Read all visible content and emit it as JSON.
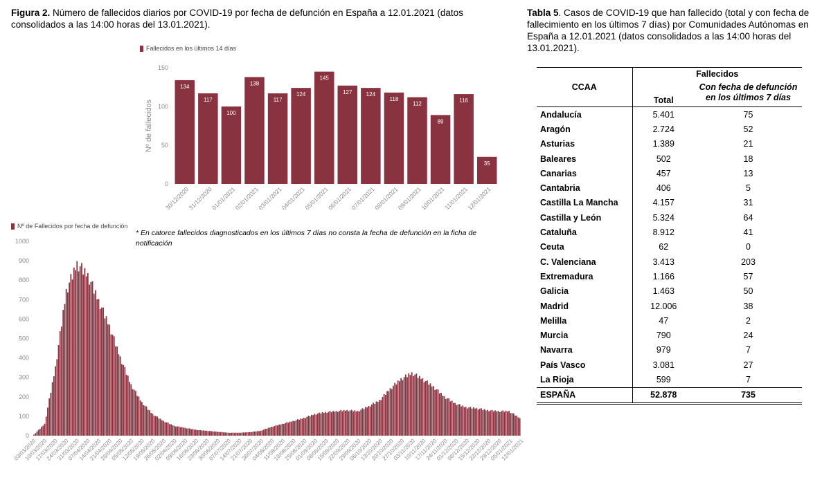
{
  "figure_caption": {
    "label": "Figura 2.",
    "text": " Número de fallecidos diarios por COVID-19 por fecha de defunción en España a 12.01.2021 (datos consolidados a las 14:00 horas del 13.01.2021)."
  },
  "table_caption": {
    "label": "Tabla 5",
    "text": ". Casos de COVID-19 que han fallecido (total y con fecha de fallecimiento en los últimos 7 días) por Comunidades Autónomas en España a 12.01.2021 (datos consolidados a las 14:00 horas del 13.01.2021)."
  },
  "note": "* En catorce fallecidos diagnosticados en los últimos 7 días no consta la fecha de defunción en la ficha de notificación",
  "colors": {
    "bar": "#8a3340",
    "axis_text": "#888888"
  },
  "chart_data": [
    {
      "type": "bar",
      "legend": "Fallecidos en los últimos 14 días",
      "ylabel": "Nº de fallecidos",
      "xlabel": "",
      "ylim": [
        0,
        150
      ],
      "yticks": [
        0,
        50,
        100,
        150
      ],
      "grid": false,
      "legend_position": "top-left",
      "categories": [
        "30/12/2020",
        "31/12/2020",
        "01/01/2021",
        "02/01/2021",
        "03/01/2021",
        "04/01/2021",
        "05/01/2021",
        "06/01/2021",
        "07/01/2021",
        "08/01/2021",
        "09/01/2021",
        "10/01/2021",
        "11/01/2021",
        "12/01/2021"
      ],
      "values": [
        134,
        117,
        100,
        138,
        117,
        124,
        145,
        127,
        124,
        118,
        112,
        89,
        116,
        35
      ]
    },
    {
      "type": "bar",
      "legend": "Nº de Fallecidos por fecha de defunción",
      "ylim": [
        0,
        1000
      ],
      "yticks": [
        0,
        100,
        200,
        300,
        400,
        500,
        600,
        700,
        800,
        900,
        1000
      ],
      "grid": false,
      "legend_position": "top-left",
      "x_start": "03/03/2020",
      "x_end": "12/01/2021",
      "tick_labels": [
        "03/03/2020",
        "10/03/2020",
        "17/03/2020",
        "24/03/2020",
        "31/03/2020",
        "07/04/2020",
        "14/04/2020",
        "21/04/2020",
        "28/04/2020",
        "05/05/2020",
        "12/05/2020",
        "19/05/2020",
        "26/05/2020",
        "02/06/2020",
        "09/06/2020",
        "16/06/2020",
        "23/06/2020",
        "30/06/2020",
        "07/07/2020",
        "14/07/2020",
        "21/07/2020",
        "28/07/2020",
        "04/08/2020",
        "11/08/2020",
        "18/08/2020",
        "25/08/2020",
        "01/09/2020",
        "08/09/2020",
        "15/09/2020",
        "22/09/2020",
        "29/09/2020",
        "06/10/2020",
        "13/10/2020",
        "20/10/2020",
        "27/10/2020",
        "03/11/2020",
        "10/11/2020",
        "17/11/2020",
        "24/11/2020",
        "01/12/2020",
        "08/12/2020",
        "15/12/2020",
        "22/12/2020",
        "29/12/2020",
        "05/01/2021",
        "12/01/2021"
      ],
      "weekly_values_approx": [
        5,
        60,
        350,
        740,
        880,
        820,
        690,
        560,
        400,
        260,
        170,
        110,
        75,
        50,
        40,
        30,
        25,
        20,
        15,
        15,
        18,
        25,
        45,
        60,
        75,
        90,
        110,
        120,
        125,
        130,
        125,
        150,
        180,
        240,
        290,
        320,
        290,
        250,
        200,
        165,
        145,
        140,
        130,
        125,
        125,
        90
      ]
    }
  ],
  "table": {
    "header_group": "Fallecidos",
    "col_region": "CCAA",
    "col_total": "Total",
    "col_recent": "Con fecha de defunción en los últimos 7 días",
    "rows": [
      {
        "name": "Andalucía",
        "total": "5.401",
        "recent": "75"
      },
      {
        "name": "Aragón",
        "total": "2.724",
        "recent": "52"
      },
      {
        "name": "Asturias",
        "total": "1.389",
        "recent": "21"
      },
      {
        "name": "Baleares",
        "total": "502",
        "recent": "18"
      },
      {
        "name": "Canarias",
        "total": "457",
        "recent": "13"
      },
      {
        "name": "Cantabria",
        "total": "406",
        "recent": "5"
      },
      {
        "name": "Castilla La Mancha",
        "total": "4.157",
        "recent": "31"
      },
      {
        "name": "Castilla y León",
        "total": "5.324",
        "recent": "64"
      },
      {
        "name": "Cataluña",
        "total": "8.912",
        "recent": "41"
      },
      {
        "name": "Ceuta",
        "total": "62",
        "recent": "0"
      },
      {
        "name": "C. Valenciana",
        "total": "3.413",
        "recent": "203"
      },
      {
        "name": "Extremadura",
        "total": "1.166",
        "recent": "57"
      },
      {
        "name": "Galicia",
        "total": "1.463",
        "recent": "50"
      },
      {
        "name": "Madrid",
        "total": "12.006",
        "recent": "38"
      },
      {
        "name": "Melilla",
        "total": "47",
        "recent": "2"
      },
      {
        "name": "Murcia",
        "total": "790",
        "recent": "24"
      },
      {
        "name": "Navarra",
        "total": "979",
        "recent": "7"
      },
      {
        "name": "País Vasco",
        "total": "3.081",
        "recent": "27"
      },
      {
        "name": "La Rioja",
        "total": "599",
        "recent": "7"
      }
    ],
    "total_row": {
      "name": "ESPAÑA",
      "total": "52.878",
      "recent": "735"
    }
  }
}
